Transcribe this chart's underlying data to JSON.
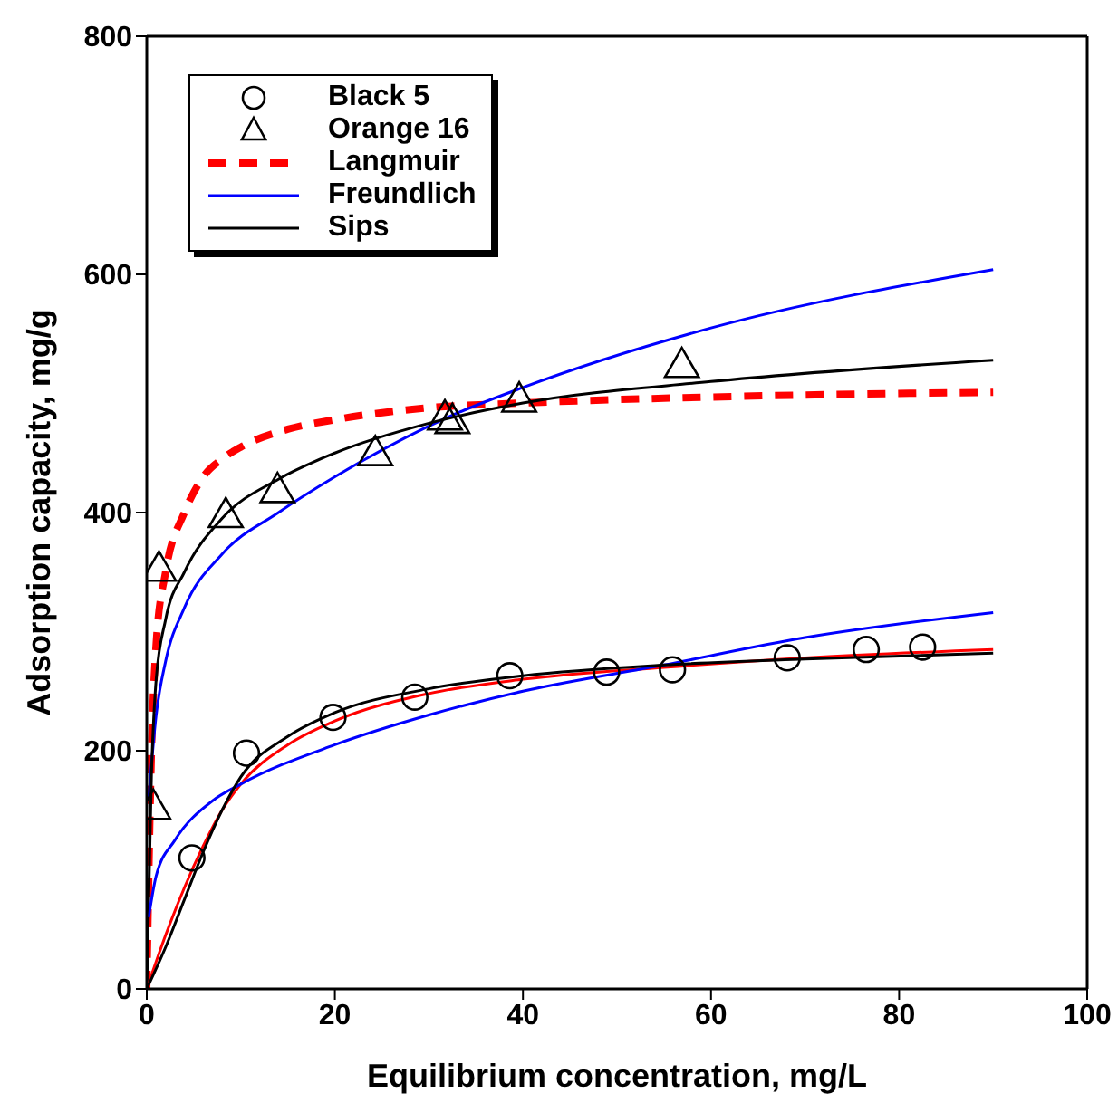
{
  "chart_data": {
    "type": "scatter",
    "xlabel": "Equilibrium concentration, mg/L",
    "ylabel": "Adsorption capacity, mg/g",
    "xlim": [
      0,
      100
    ],
    "xticks": [
      0,
      20,
      40,
      60,
      80,
      100
    ],
    "ylim": [
      0,
      800
    ],
    "yticks": [
      0,
      200,
      400,
      600,
      800
    ],
    "grid": false,
    "legend": "top left",
    "series": [
      {
        "name": "Black 5",
        "marker": "circle",
        "color": "#000000",
        "x": [
          4.8,
          10.6,
          19.8,
          28.5,
          38.6,
          48.9,
          55.9,
          68.1,
          76.5,
          82.5
        ],
        "values": [
          110,
          198,
          228,
          245,
          263,
          266,
          268,
          278,
          285,
          287
        ]
      },
      {
        "name": "Orange 16",
        "marker": "triangle",
        "color": "#000000",
        "x": [
          0.7,
          1.3,
          8.4,
          13.9,
          24.3,
          31.7,
          32.5,
          39.6,
          56.9
        ],
        "values": [
          151,
          351,
          396,
          417,
          448,
          478,
          475,
          493,
          522
        ]
      },
      {
        "name": "Langmuir",
        "type": "line",
        "line_style": "dashed",
        "color": "#ff0000",
        "x": [
          0,
          0.5,
          1,
          2,
          4,
          6,
          8,
          10,
          15,
          20,
          30,
          40,
          60,
          90
        ],
        "values": [
          0,
          200,
          290,
          350,
          400,
          430,
          445,
          455,
          470,
          478,
          488,
          492,
          497,
          501
        ]
      },
      {
        "name": "Freundlich",
        "type": "line",
        "line_style": "solid",
        "color": "#0000ff",
        "x": [
          0.2,
          1,
          2,
          4,
          8,
          14,
          20,
          32,
          40,
          60,
          90
        ],
        "values": [
          160,
          230,
          275,
          320,
          365,
          400,
          430,
          480,
          505,
          555,
          604
        ]
      },
      {
        "name": "Sips",
        "type": "line",
        "line_style": "solid",
        "color": "#000000",
        "x": [
          0,
          0.5,
          1,
          2,
          4,
          8,
          14,
          20,
          30,
          40,
          60,
          90
        ],
        "values": [
          0,
          180,
          260,
          310,
          350,
          395,
          428,
          450,
          475,
          492,
          510,
          528
        ]
      },
      {
        "type": "line",
        "line_style": "solid",
        "color": "#ff0000",
        "x": [
          0,
          2,
          4,
          6,
          8,
          10,
          15,
          20,
          30,
          40,
          55,
          70,
          90
        ],
        "values": [
          0,
          45,
          85,
          120,
          150,
          172,
          205,
          225,
          248,
          260,
          270,
          278,
          285
        ]
      },
      {
        "type": "line",
        "line_style": "solid",
        "color": "#0000ff",
        "x": [
          0.2,
          1,
          3,
          7,
          10,
          20,
          30,
          40,
          55,
          70,
          90
        ],
        "values": [
          60,
          95,
          125,
          158,
          172,
          205,
          230,
          250,
          272,
          295,
          316
        ]
      },
      {
        "type": "line",
        "line_style": "solid",
        "color": "#000000",
        "x": [
          0,
          2,
          4,
          6,
          8,
          10,
          15,
          20,
          30,
          40,
          55,
          70,
          90
        ],
        "values": [
          0,
          35,
          75,
          115,
          150,
          178,
          212,
          232,
          252,
          263,
          272,
          277,
          282
        ]
      }
    ]
  }
}
